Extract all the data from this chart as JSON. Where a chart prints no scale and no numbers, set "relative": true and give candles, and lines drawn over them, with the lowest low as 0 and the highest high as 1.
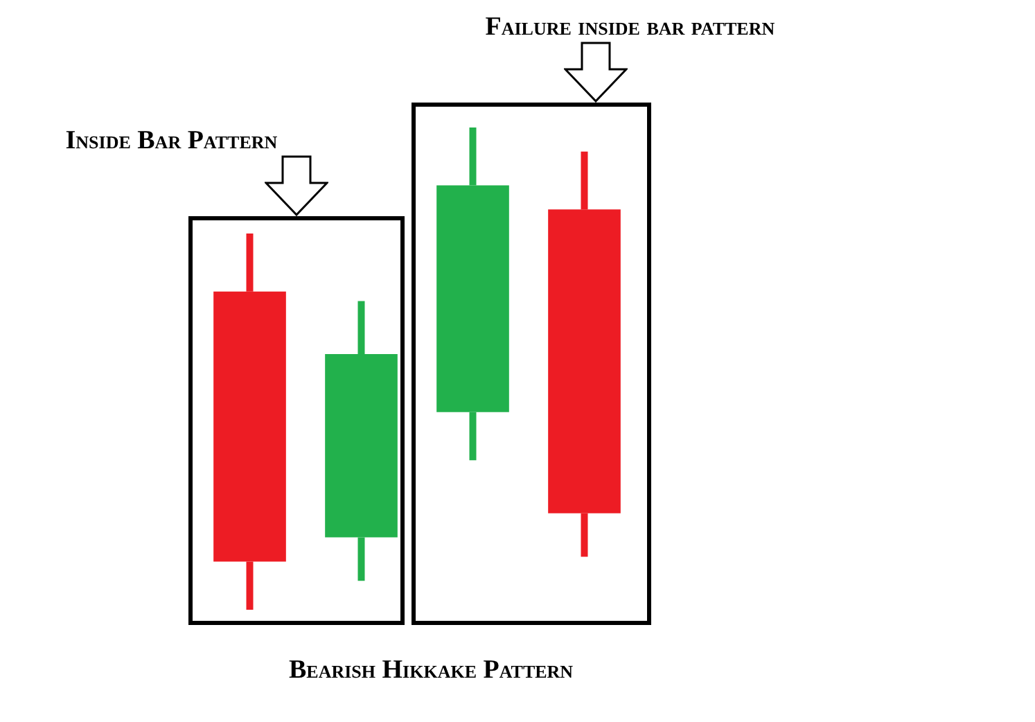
{
  "chart_data": {
    "type": "candlestick",
    "relative": true,
    "categories": [
      null,
      null,
      null,
      null
    ],
    "ohlc": [
      [
        0.66,
        0.78,
        0,
        0.1
      ],
      [
        0.15,
        0.64,
        0.06,
        0.53
      ],
      [
        0.41,
        1,
        0.31,
        0.88
      ],
      [
        0.83,
        0.95,
        0.11,
        0.2
      ]
    ],
    "colors": [
      "#ed1c24",
      "#22b14c",
      "#22b14c",
      "#ed1c24"
    ],
    "legend": false,
    "annotations": [
      "Inside Bar Pattern",
      "Failure inside bar pattern",
      "Bearish Hikkake Pattern"
    ]
  }
}
